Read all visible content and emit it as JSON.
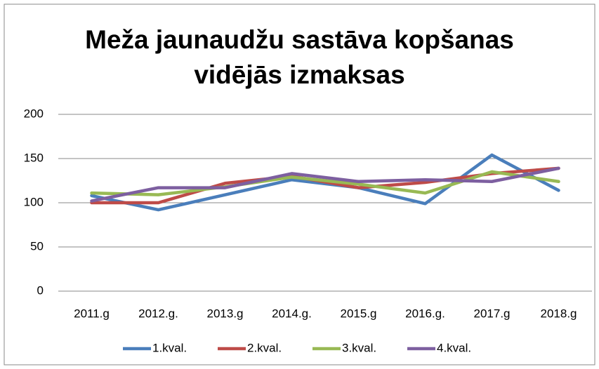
{
  "chart_data": {
    "type": "line",
    "title": "Meža jaunaudžu sastāva kopšanas vidējās izmaksas",
    "categories": [
      "2011.g",
      "2012.g.",
      "2013.g",
      "2014.g.",
      "2015.g",
      "2016.g.",
      "2017.g",
      "2018.g"
    ],
    "series": [
      {
        "name": "1.kval.",
        "color": "#4a7ebb",
        "values": [
          108,
          92,
          109,
          126,
          117,
          99,
          154,
          114
        ]
      },
      {
        "name": "2.kval.",
        "color": "#be4b48",
        "values": [
          100,
          100,
          122,
          130,
          117,
          123,
          133,
          139
        ]
      },
      {
        "name": "3.kval.",
        "color": "#98b954",
        "values": [
          111,
          109,
          118,
          129,
          121,
          111,
          135,
          124
        ]
      },
      {
        "name": "4.kval.",
        "color": "#7d5fa0",
        "values": [
          102,
          117,
          117,
          133,
          124,
          126,
          124,
          139
        ]
      }
    ],
    "ylim": [
      0,
      200
    ],
    "yticks": [
      0,
      50,
      100,
      150,
      200
    ],
    "grid": true,
    "legend": "bottom"
  }
}
